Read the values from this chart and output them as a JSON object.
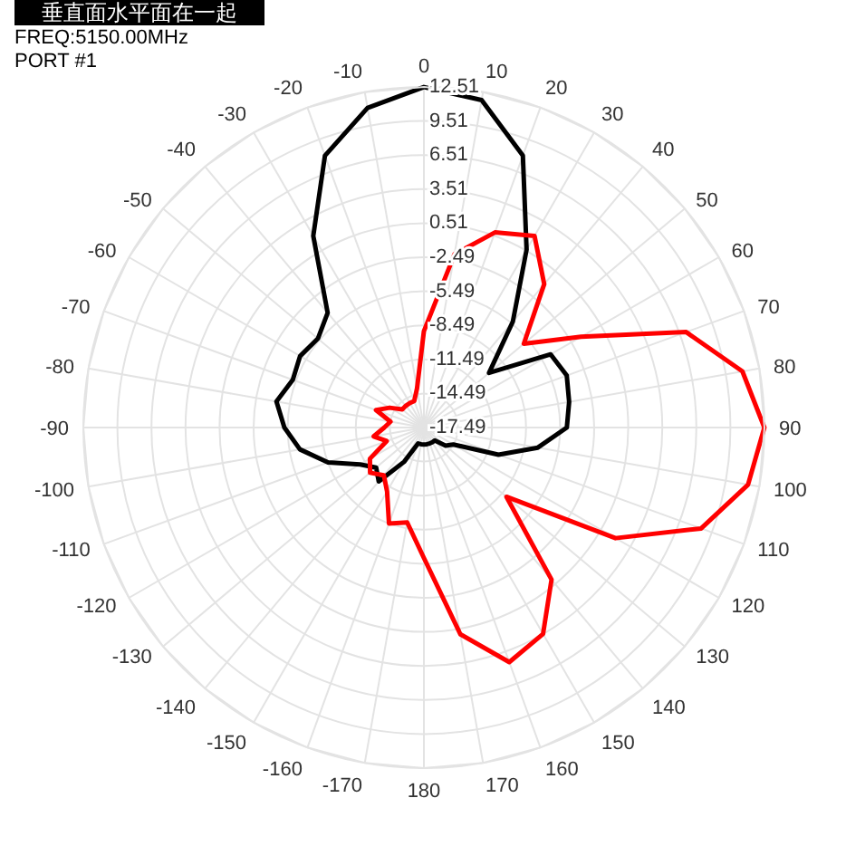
{
  "chart_data": {
    "type": "radar",
    "title": "垂直面水平面在一起",
    "annotations": [
      "FREQ:5150.00MHz",
      "PORT #1"
    ],
    "categories": [
      "0",
      "10",
      "20",
      "30",
      "40",
      "50",
      "60",
      "70",
      "80",
      "90",
      "100",
      "110",
      "120",
      "130",
      "140",
      "150",
      "160",
      "170",
      "180",
      "-170",
      "-160",
      "-150",
      "-140",
      "-130",
      "-120",
      "-110",
      "-100",
      "-90",
      "-80",
      "-70",
      "-60",
      "-50",
      "-40",
      "-30",
      "-20",
      "-10"
    ],
    "series": [
      {
        "color": "#000000",
        "values": [
          12.5,
          11.8,
          8.0,
          0.6,
          -5.3,
          -10,
          -4.6,
          -4.1,
          -4.5,
          -4.9,
          -7.3,
          -10.5,
          -14.5,
          -15,
          -16,
          -16,
          -16,
          -16,
          -16,
          -16,
          -16,
          -14,
          -11.3,
          -12,
          -11,
          -8.5,
          -6.4,
          -5.2,
          -4.3,
          -5.2,
          -4.9,
          -5.3,
          -4.3,
          2.0,
          8.0,
          11.1
        ]
      },
      {
        "color": "#ff0000",
        "values": [
          -9,
          -2,
          0.8,
          2.0,
          -1,
          -6,
          -1.5,
          7.1,
          11.0,
          12.5,
          11.5,
          8.5,
          2.0,
          -8,
          0,
          3.5,
          4.5,
          1.0,
          -6,
          -9,
          -8.5,
          -11,
          -12,
          -11.3,
          -12,
          -14,
          -13,
          -14,
          -14.5,
          -13,
          -14,
          -15,
          -15,
          -15,
          -15,
          -14
        ]
      }
    ],
    "ylim": [
      -17.49,
      12.51
    ],
    "yticks": [
      12.51,
      9.51,
      6.51,
      3.51,
      0.51,
      -2.49,
      -5.49,
      -8.49,
      -11.49,
      -14.49,
      -17.49
    ],
    "grid": true
  }
}
